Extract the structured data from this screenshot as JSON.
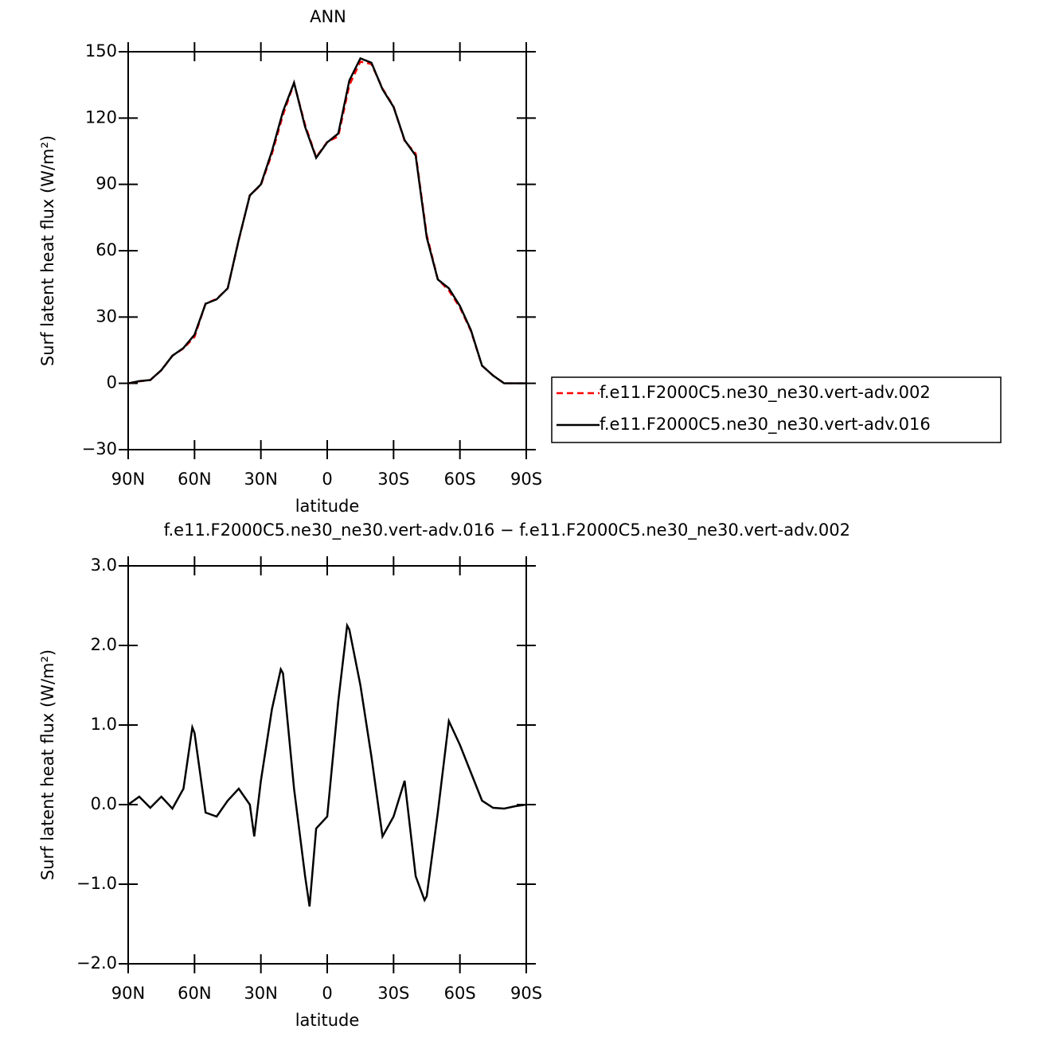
{
  "chart_data": [
    {
      "type": "line",
      "title": "ANN",
      "xlabel": "latitude",
      "ylabel": "Surf latent heat flux (W/m²)",
      "x": [
        90,
        85,
        80,
        75,
        70,
        65,
        60,
        55,
        50,
        45,
        40,
        35,
        30,
        25,
        20,
        15,
        10,
        5,
        0,
        -5,
        -10,
        -15,
        -20,
        -25,
        -30,
        -35,
        -40,
        -45,
        -50,
        -55,
        -60,
        -65,
        -70,
        -75,
        -80,
        -85,
        -90
      ],
      "series": [
        {
          "name": "f.e11.F2000C5.ne30_ne30.vert-adv.002",
          "color": "#ff0000",
          "style": "dashed",
          "values": [
            0,
            0.9,
            1.5,
            5.9,
            12.5,
            15.8,
            21,
            36.1,
            38.2,
            43,
            64.8,
            85.1,
            89.7,
            103.8,
            121.4,
            135.8,
            116.9,
            102.3,
            109.2,
            111.7,
            134.9,
            145.5,
            144.4,
            133.4,
            125.2,
            109.7,
            103.9,
            67.1,
            47.1,
            42,
            34.3,
            23.6,
            8,
            3.5,
            0,
            0,
            0
          ]
        },
        {
          "name": "f.e11.F2000C5.ne30_ne30.vert-adv.016",
          "color": "#000000",
          "style": "solid",
          "values": [
            0,
            1,
            1.5,
            6,
            12.5,
            16,
            22,
            36,
            38,
            43,
            65,
            85,
            90,
            105,
            123,
            136,
            116,
            102,
            109,
            113,
            137,
            147,
            145,
            133,
            125,
            110,
            103,
            66,
            47,
            43,
            35,
            24,
            8,
            3.5,
            0,
            0,
            0
          ]
        }
      ],
      "xlim": [
        90,
        -90
      ],
      "xticks": [
        {
          "value": 90,
          "label": "90N"
        },
        {
          "value": 60,
          "label": "60N"
        },
        {
          "value": 30,
          "label": "30N"
        },
        0,
        {
          "value": -30,
          "label": "30S"
        },
        {
          "value": -60,
          "label": "60S"
        },
        {
          "value": -90,
          "label": "90S"
        }
      ],
      "ylim": [
        -30,
        150
      ],
      "yticks": [
        {
          "value": -30,
          "label": "−30"
        },
        0,
        30,
        60,
        90,
        120,
        150
      ],
      "legend": "right"
    },
    {
      "type": "line",
      "title": "f.e11.F2000C5.ne30_ne30.vert-adv.016 − f.e11.F2000C5.ne30_ne30.vert-adv.002",
      "xlabel": "latitude",
      "ylabel": "Surf latent heat flux (W/m²)",
      "x": [
        90,
        85,
        80,
        75,
        70,
        65,
        61,
        60,
        55,
        50,
        45,
        40,
        35,
        33,
        30,
        25,
        21,
        20,
        15,
        10,
        8,
        5,
        0,
        -5,
        -9,
        -10,
        -15,
        -20,
        -25,
        -30,
        -35,
        -40,
        -44,
        -45,
        -50,
        -55,
        -60,
        -65,
        -70,
        -75,
        -80,
        -85,
        -90
      ],
      "values": [
        0,
        0.1,
        -0.04,
        0.1,
        -0.05,
        0.2,
        0.97,
        0.9,
        -0.1,
        -0.15,
        0.05,
        0.2,
        0,
        -0.4,
        0.3,
        1.2,
        1.7,
        1.65,
        0.2,
        -0.9,
        -1.28,
        -0.3,
        -0.15,
        1.3,
        2.25,
        2.2,
        1.5,
        0.6,
        -0.4,
        -0.15,
        0.3,
        -0.9,
        -1.2,
        -1.15,
        -0.1,
        1.05,
        0.75,
        0.4,
        0.05,
        -0.04,
        -0.05,
        -0.02,
        0
      ],
      "color": "#000000",
      "xlim": [
        90,
        -90
      ],
      "xticks": [
        {
          "value": 90,
          "label": "90N"
        },
        {
          "value": 60,
          "label": "60N"
        },
        {
          "value": 30,
          "label": "30N"
        },
        0,
        {
          "value": -30,
          "label": "30S"
        },
        {
          "value": -60,
          "label": "60S"
        },
        {
          "value": -90,
          "label": "90S"
        }
      ],
      "ylim": [
        -2,
        3
      ],
      "yticks": [
        {
          "value": -2,
          "label": "−2.0"
        },
        {
          "value": -1,
          "label": "−1.0"
        },
        {
          "value": 0,
          "label": "0.0"
        },
        {
          "value": 1,
          "label": "1.0"
        },
        {
          "value": 2,
          "label": "2.0"
        },
        {
          "value": 3,
          "label": "3.0"
        }
      ]
    }
  ]
}
